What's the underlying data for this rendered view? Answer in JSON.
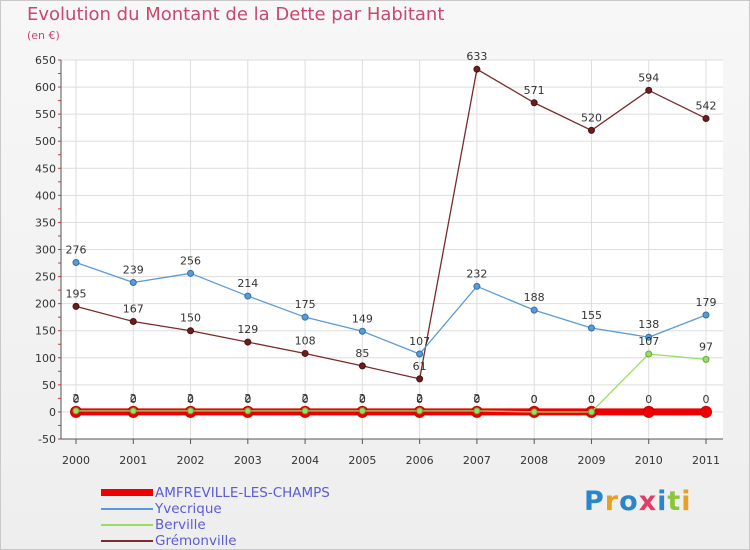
{
  "header": {
    "title": "Evolution du Montant de la Dette par Habitant",
    "unit": "(en €)"
  },
  "logo": {
    "text": "Proxiti"
  },
  "chart_data": {
    "type": "line",
    "categories": [
      "2000",
      "2001",
      "2002",
      "2003",
      "2004",
      "2005",
      "2006",
      "2007",
      "2008",
      "2009",
      "2010",
      "2011"
    ],
    "ylim": [
      -50,
      650
    ],
    "yticks": [
      -50,
      0,
      50,
      100,
      150,
      200,
      250,
      300,
      350,
      400,
      450,
      500,
      550,
      600,
      650
    ],
    "ytick_labels": [
      "-50",
      "0",
      "50",
      "100",
      "150",
      "200",
      "250",
      "300",
      "350",
      "400",
      "450",
      "500",
      "550",
      "600",
      "650"
    ],
    "grid": true,
    "legend_position": "bottom-left",
    "series": [
      {
        "name": "AMFREVILLE-LES-CHAMPS",
        "color": "#ee0000",
        "values": [
          0,
          0,
          0,
          0,
          0,
          0,
          0,
          0,
          0,
          0,
          0,
          0
        ],
        "labels": [
          "0",
          "0",
          "0",
          "0",
          "0",
          "0",
          "0",
          "0",
          "0",
          "0",
          "0",
          "0"
        ]
      },
      {
        "name": "Yvecrique",
        "color": "#5b9bd5",
        "values": [
          276,
          239,
          256,
          214,
          175,
          149,
          107,
          232,
          188,
          155,
          138,
          179
        ],
        "labels": [
          "276",
          "239",
          "256",
          "214",
          "175",
          "149",
          "107",
          "232",
          "188",
          "155",
          "138",
          "179"
        ]
      },
      {
        "name": "Berville",
        "color": "#99dd66",
        "values": [
          2,
          2,
          2,
          2,
          2,
          2,
          2,
          2,
          0,
          0,
          107,
          97
        ],
        "labels": [
          "2",
          "2",
          "2",
          "2",
          "2",
          "2",
          "2",
          "2",
          "0",
          "0",
          "107",
          "97"
        ]
      },
      {
        "name": "Grémonville",
        "color": "#7a2b2b",
        "values": [
          195,
          167,
          150,
          129,
          108,
          85,
          61,
          633,
          571,
          520,
          594,
          542
        ],
        "labels": [
          "195",
          "167",
          "150",
          "129",
          "108",
          "85",
          "61",
          "633",
          "571",
          "520",
          "594",
          "542"
        ]
      }
    ]
  }
}
